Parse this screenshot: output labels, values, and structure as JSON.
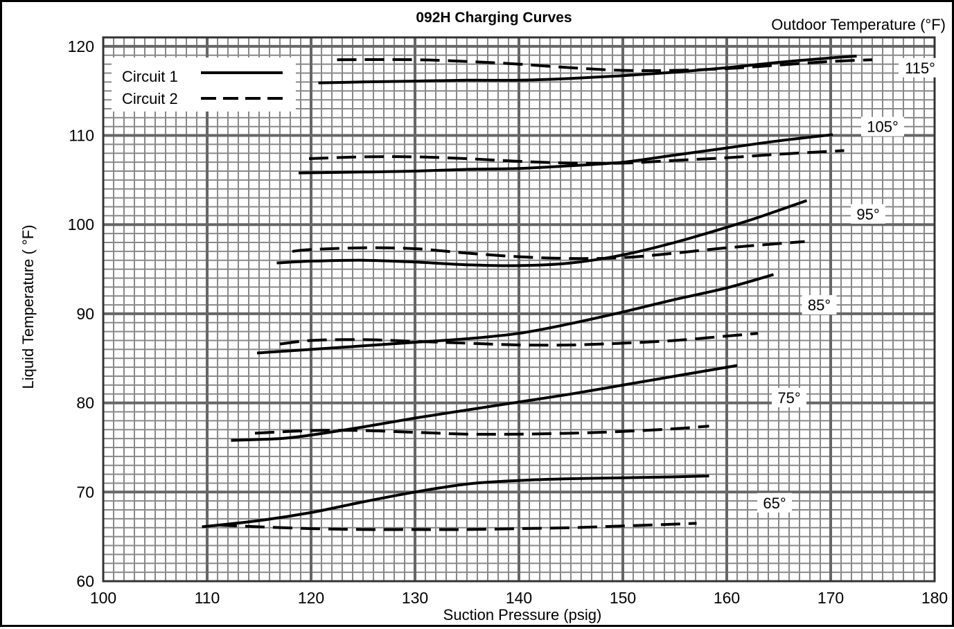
{
  "chart_data": {
    "type": "line",
    "title": "092H Charging Curves",
    "xlabel": "Suction Pressure (psig)",
    "ylabel": "Liquid Temperature (  °F)",
    "group_label": "Outdoor Temperature (°F)",
    "xlim": [
      100,
      180
    ],
    "ylim": [
      60,
      121
    ],
    "x_ticks": [
      "100",
      "110",
      "120",
      "130",
      "140",
      "150",
      "160",
      "170",
      "180"
    ],
    "y_ticks": [
      "60",
      "70",
      "80",
      "90",
      "100",
      "110",
      "120"
    ],
    "grid": true,
    "legend_position": "top-left",
    "legend": [
      {
        "label": "Circuit 1",
        "style": "solid"
      },
      {
        "label": "Circuit 2",
        "style": "dashed"
      }
    ],
    "series": [
      {
        "circuit": "Circuit 1",
        "outdoor": "65°",
        "style": "solid",
        "points": [
          [
            109.5,
            66.1
          ],
          [
            115,
            66.8
          ],
          [
            120,
            67.7
          ],
          [
            125,
            68.9
          ],
          [
            130,
            70.0
          ],
          [
            135,
            70.9
          ],
          [
            140,
            71.3
          ],
          [
            145,
            71.5
          ],
          [
            150,
            71.6
          ],
          [
            155,
            71.7
          ],
          [
            158.3,
            71.8
          ]
        ]
      },
      {
        "circuit": "Circuit 2",
        "outdoor": "65°",
        "style": "dashed",
        "points": [
          [
            111,
            66.3
          ],
          [
            115,
            66.1
          ],
          [
            120,
            65.9
          ],
          [
            125,
            65.8
          ],
          [
            130,
            65.8
          ],
          [
            135,
            65.8
          ],
          [
            140,
            65.9
          ],
          [
            145,
            66.0
          ],
          [
            150,
            66.2
          ],
          [
            155,
            66.4
          ],
          [
            157.1,
            66.5
          ]
        ]
      },
      {
        "circuit": "Circuit 1",
        "outdoor": "75°",
        "style": "solid",
        "points": [
          [
            112.3,
            75.8
          ],
          [
            117,
            76.0
          ],
          [
            120,
            76.4
          ],
          [
            125,
            77.3
          ],
          [
            130,
            78.3
          ],
          [
            135,
            79.2
          ],
          [
            140,
            80.1
          ],
          [
            145,
            81.0
          ],
          [
            150,
            82.0
          ],
          [
            155,
            83.0
          ],
          [
            161,
            84.2
          ]
        ]
      },
      {
        "circuit": "Circuit 2",
        "outdoor": "75°",
        "style": "dashed",
        "points": [
          [
            114.6,
            76.6
          ],
          [
            120,
            76.9
          ],
          [
            125,
            76.9
          ],
          [
            130,
            76.7
          ],
          [
            135,
            76.5
          ],
          [
            140,
            76.5
          ],
          [
            145,
            76.6
          ],
          [
            150,
            76.8
          ],
          [
            155,
            77.1
          ],
          [
            158.3,
            77.4
          ]
        ]
      },
      {
        "circuit": "Circuit 1",
        "outdoor": "85°",
        "style": "solid",
        "points": [
          [
            114.8,
            85.6
          ],
          [
            120,
            86.0
          ],
          [
            125,
            86.4
          ],
          [
            130,
            86.8
          ],
          [
            135,
            87.2
          ],
          [
            140,
            87.8
          ],
          [
            145,
            88.9
          ],
          [
            150,
            90.2
          ],
          [
            155,
            91.6
          ],
          [
            160,
            92.9
          ],
          [
            164.5,
            94.4
          ]
        ]
      },
      {
        "circuit": "Circuit 2",
        "outdoor": "85°",
        "style": "dashed",
        "points": [
          [
            117,
            86.6
          ],
          [
            120,
            87.0
          ],
          [
            125,
            87.1
          ],
          [
            130,
            86.9
          ],
          [
            135,
            86.7
          ],
          [
            140,
            86.5
          ],
          [
            145,
            86.5
          ],
          [
            150,
            86.7
          ],
          [
            155,
            87.0
          ],
          [
            160,
            87.5
          ],
          [
            163,
            87.8
          ]
        ]
      },
      {
        "circuit": "Circuit 1",
        "outdoor": "95°",
        "style": "solid",
        "points": [
          [
            116.7,
            95.7
          ],
          [
            120,
            95.9
          ],
          [
            125,
            96.0
          ],
          [
            130,
            95.8
          ],
          [
            135,
            95.5
          ],
          [
            140,
            95.4
          ],
          [
            145,
            95.7
          ],
          [
            150,
            96.6
          ],
          [
            155,
            98.0
          ],
          [
            160,
            99.7
          ],
          [
            163,
            100.8
          ],
          [
            167.7,
            102.7
          ]
        ]
      },
      {
        "circuit": "Circuit 2",
        "outdoor": "95°",
        "style": "dashed",
        "points": [
          [
            118.2,
            97.0
          ],
          [
            120,
            97.2
          ],
          [
            125,
            97.4
          ],
          [
            130,
            97.3
          ],
          [
            135,
            96.8
          ],
          [
            140,
            96.4
          ],
          [
            145,
            96.2
          ],
          [
            150,
            96.3
          ],
          [
            155,
            96.8
          ],
          [
            160,
            97.4
          ],
          [
            167.5,
            98.1
          ]
        ]
      },
      {
        "circuit": "Circuit 1",
        "outdoor": "105°",
        "style": "solid",
        "points": [
          [
            118.8,
            105.8
          ],
          [
            125,
            105.9
          ],
          [
            130,
            106.0
          ],
          [
            135,
            106.2
          ],
          [
            140,
            106.3
          ],
          [
            145,
            106.6
          ],
          [
            150,
            107.0
          ],
          [
            155,
            107.8
          ],
          [
            160,
            108.6
          ],
          [
            165,
            109.4
          ],
          [
            170.2,
            110.1
          ]
        ]
      },
      {
        "circuit": "Circuit 2",
        "outdoor": "105°",
        "style": "dashed",
        "points": [
          [
            119.8,
            107.4
          ],
          [
            125,
            107.6
          ],
          [
            130,
            107.6
          ],
          [
            135,
            107.4
          ],
          [
            140,
            107.1
          ],
          [
            145,
            106.9
          ],
          [
            150,
            106.9
          ],
          [
            155,
            107.2
          ],
          [
            160,
            107.5
          ],
          [
            165,
            107.9
          ],
          [
            171.3,
            108.3
          ]
        ]
      },
      {
        "circuit": "Circuit 1",
        "outdoor": "115°",
        "style": "solid",
        "points": [
          [
            120.7,
            115.9
          ],
          [
            125,
            116.0
          ],
          [
            130,
            116.1
          ],
          [
            135,
            116.2
          ],
          [
            140,
            116.2
          ],
          [
            145,
            116.4
          ],
          [
            150,
            116.7
          ],
          [
            155,
            117.1
          ],
          [
            160,
            117.6
          ],
          [
            165,
            118.2
          ],
          [
            170,
            118.7
          ],
          [
            172.5,
            118.9
          ]
        ]
      },
      {
        "circuit": "Circuit 2",
        "outdoor": "115°",
        "style": "dashed",
        "points": [
          [
            122.5,
            118.5
          ],
          [
            130,
            118.5
          ],
          [
            135,
            118.3
          ],
          [
            140,
            118.0
          ],
          [
            145,
            117.6
          ],
          [
            150,
            117.3
          ],
          [
            155,
            117.3
          ],
          [
            160,
            117.5
          ],
          [
            165,
            117.9
          ],
          [
            170,
            118.3
          ],
          [
            174,
            118.5
          ]
        ]
      }
    ],
    "curve_labels": [
      {
        "text": "65°",
        "x": 164.6,
        "y": 68.8
      },
      {
        "text": "75°",
        "x": 166.0,
        "y": 80.6
      },
      {
        "text": "85°",
        "x": 168.9,
        "y": 91.0
      },
      {
        "text": "95°",
        "x": 173.6,
        "y": 101.2
      },
      {
        "text": "105°",
        "x": 175.0,
        "y": 111.0
      },
      {
        "text": "115°",
        "x": 178.6,
        "y": 117.6
      }
    ]
  }
}
